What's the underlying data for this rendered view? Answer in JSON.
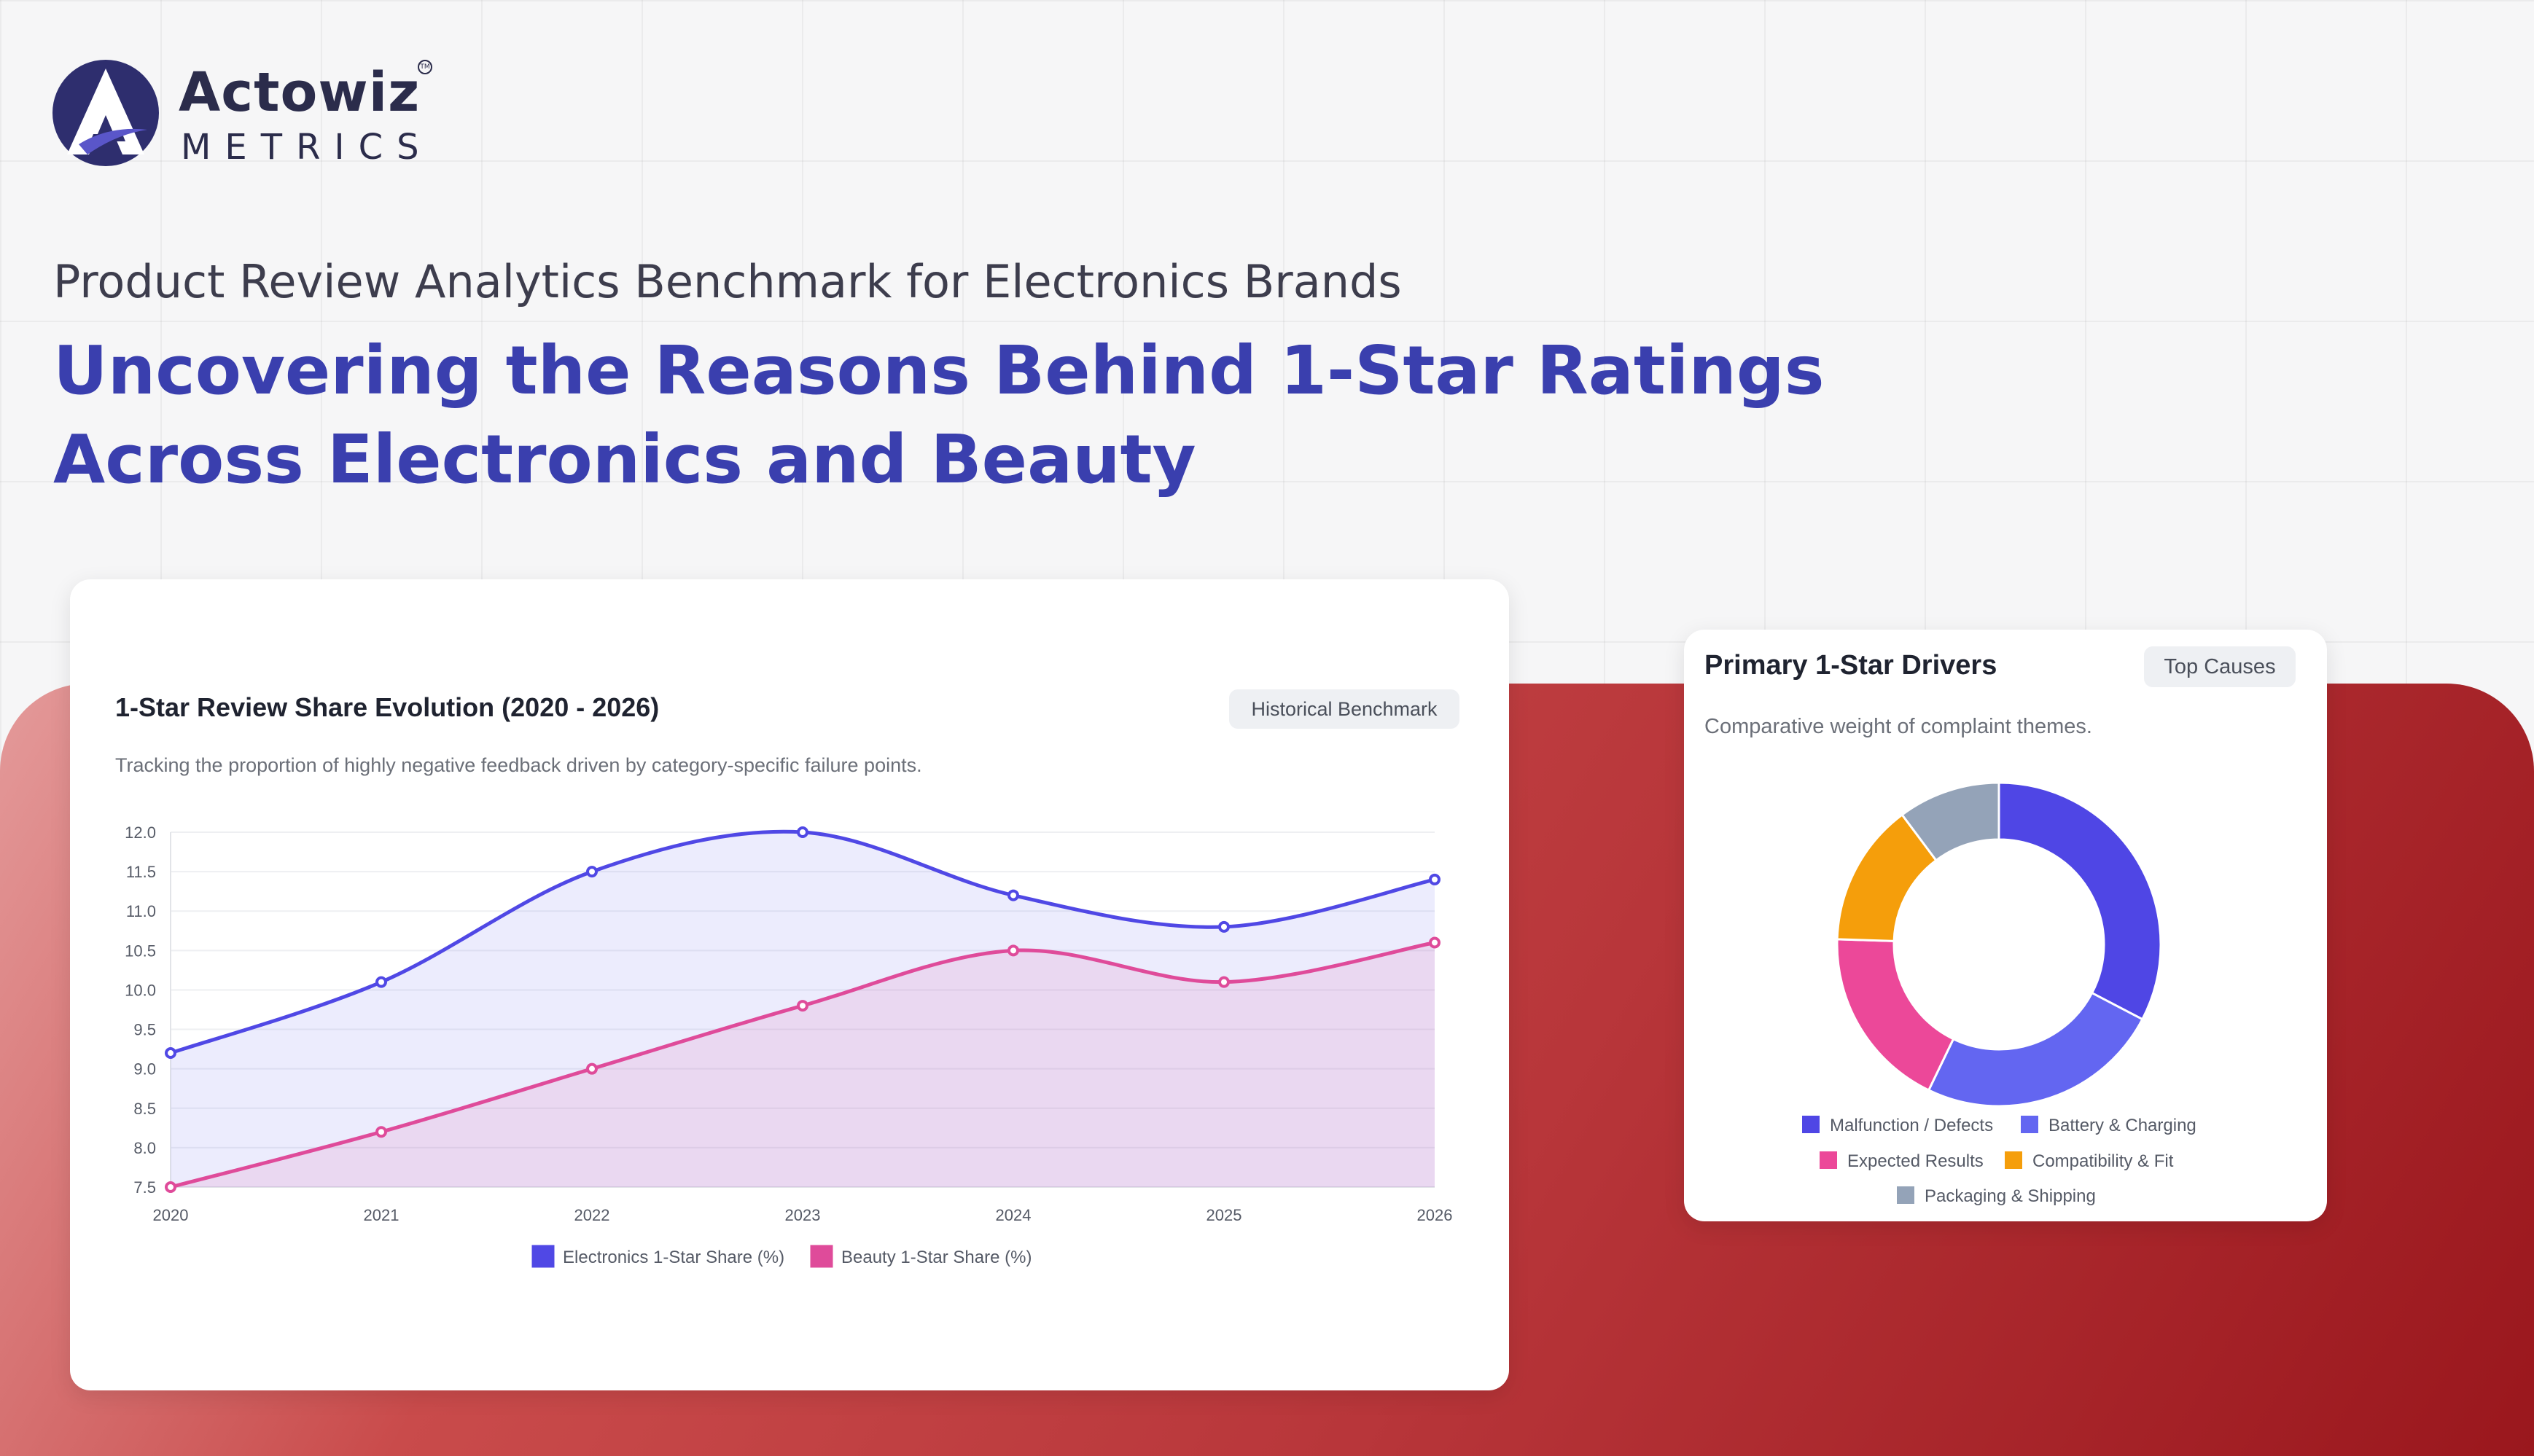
{
  "brand": {
    "name": "Actowiz",
    "sub": "METRICS",
    "tm": "TM"
  },
  "kicker": "Product Review Analytics Benchmark for Electronics Brands",
  "headline": {
    "line1": "Uncovering the Reasons Behind 1-Star Ratings",
    "line2": "Across Electronics and Beauty"
  },
  "colors": {
    "headline": "#3a3fae",
    "electronics": "#5048e5",
    "beauty": "#df4b9a",
    "red_background": "#b8363a"
  },
  "line_card": {
    "badge": "Historical Benchmark",
    "subtitle": "Tracking the proportion of highly negative feedback driven by category-specific failure points."
  },
  "donut_card": {
    "badge": "Top Causes",
    "subtitle": "Comparative weight of complaint themes."
  },
  "chart_data": [
    {
      "type": "line",
      "title": "1-Star Review Share Evolution (2020 - 2026)",
      "x": [
        "2020",
        "2021",
        "2022",
        "2023",
        "2024",
        "2025",
        "2026"
      ],
      "ylim": [
        7.5,
        12.0
      ],
      "yticks": [
        "12.0",
        "11.5",
        "11.0",
        "10.5",
        "10.0",
        "9.5",
        "9.0",
        "8.5",
        "8.0",
        "7.5"
      ],
      "grid": true,
      "legend": "bottom",
      "series": [
        {
          "name": "Electronics 1-Star Share (%)",
          "values": [
            9.2,
            10.1,
            11.5,
            12.0,
            11.2,
            10.8,
            11.4
          ],
          "color": "#5048e5"
        },
        {
          "name": "Beauty 1-Star Share (%)",
          "values": [
            7.5,
            8.2,
            9.0,
            9.8,
            10.5,
            10.1,
            10.6
          ],
          "color": "#df4b9a"
        }
      ]
    },
    {
      "type": "pie",
      "title": "Primary 1-Star Drivers",
      "legend": "bottom",
      "slices": [
        {
          "label": "Malfunction / Defects",
          "value": 32,
          "color": "#4f46e5"
        },
        {
          "label": "Battery & Charging",
          "value": 24,
          "color": "#6366f1"
        },
        {
          "label": "Expected Results",
          "value": 18,
          "color": "#ec4899"
        },
        {
          "label": "Compatibility & Fit",
          "value": 14,
          "color": "#f59e0b"
        },
        {
          "label": "Packaging & Shipping",
          "value": 10,
          "color": "#94a3b8"
        }
      ]
    }
  ]
}
